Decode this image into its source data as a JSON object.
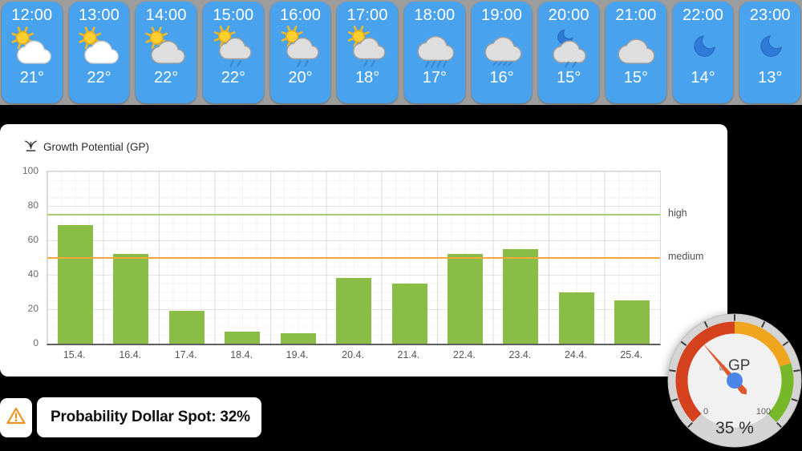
{
  "page_bg": "#000000",
  "weather": {
    "strip_bg": "#9d9d9d",
    "card_color": "#49a2ed",
    "cards": [
      {
        "time": "12:00",
        "temp": "21°",
        "icon": "sun-cloud-white"
      },
      {
        "time": "13:00",
        "temp": "22°",
        "icon": "sun-cloud-white"
      },
      {
        "time": "14:00",
        "temp": "22°",
        "icon": "sun-cloud-gray"
      },
      {
        "time": "15:00",
        "temp": "22°",
        "icon": "sun-cloud-rain"
      },
      {
        "time": "16:00",
        "temp": "20°",
        "icon": "sun-cloud-rain"
      },
      {
        "time": "17:00",
        "temp": "18°",
        "icon": "sun-cloud-rain"
      },
      {
        "time": "18:00",
        "temp": "17°",
        "icon": "cloud-rain"
      },
      {
        "time": "19:00",
        "temp": "16°",
        "icon": "cloud-drizzle"
      },
      {
        "time": "20:00",
        "temp": "15°",
        "icon": "moon-cloud-rain"
      },
      {
        "time": "21:00",
        "temp": "15°",
        "icon": "cloud"
      },
      {
        "time": "22:00",
        "temp": "14°",
        "icon": "moon"
      },
      {
        "time": "23:00",
        "temp": "13°",
        "icon": "moon"
      }
    ]
  },
  "chart_data": {
    "type": "bar",
    "title": "Growth Potential (GP)",
    "title_icon": "growth-icon",
    "categories": [
      "15.4.",
      "16.4.",
      "17.4.",
      "18.4.",
      "19.4.",
      "20.4.",
      "21.4.",
      "22.4.",
      "23.4.",
      "24.4.",
      "25.4."
    ],
    "values": [
      69,
      52,
      19,
      7,
      6,
      38,
      35,
      52,
      55,
      30,
      25
    ],
    "xlabel": "",
    "ylabel": "",
    "ylim": [
      0,
      100
    ],
    "yticks": [
      0,
      20,
      40,
      60,
      80,
      100
    ],
    "bar_color": "#8abd45",
    "grid": true,
    "legend_position": "none",
    "reference_lines": [
      {
        "value": 75,
        "label": "high",
        "color": "#a6ce6e"
      },
      {
        "value": 50,
        "label": "medium",
        "color": "#f2a83c"
      }
    ]
  },
  "gauge": {
    "prefix": "⌀",
    "label": "GP",
    "value": 35,
    "value_text": "35 %",
    "min": 0,
    "max": 100,
    "min_label": "0",
    "max_label": "100",
    "segments": [
      {
        "from": 0,
        "to": 50,
        "color": "#d5401d"
      },
      {
        "from": 50,
        "to": 77,
        "color": "#f0a51f"
      },
      {
        "from": 77,
        "to": 100,
        "color": "#76b82a"
      }
    ],
    "needle_color": "#e1562b",
    "hub_color": "#4a86e8",
    "ring_color": "#d4d4d4",
    "face_color": "#f1f1f1"
  },
  "alert": {
    "icon": "warning-icon",
    "icon_color": "#e8941f",
    "text": "Probability Dollar Spot: 32%"
  }
}
